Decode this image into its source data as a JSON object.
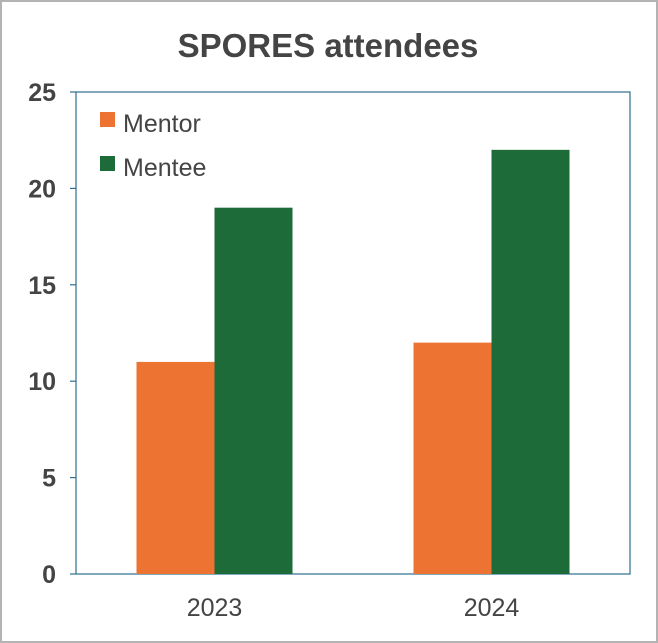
{
  "chart_data": {
    "type": "bar",
    "title": "SPORES attendees",
    "categories": [
      "2023",
      "2024"
    ],
    "series": [
      {
        "name": "Mentor",
        "color": "#ED7332",
        "values": [
          11,
          12
        ]
      },
      {
        "name": "Mentee",
        "color": "#1E6B3A",
        "values": [
          19,
          22
        ]
      }
    ],
    "ylim": [
      0,
      25
    ],
    "yticks": [
      "0",
      "5",
      "10",
      "15",
      "20",
      "25"
    ],
    "grid": false,
    "legend_position": "top-left",
    "xlabel": "",
    "ylabel": ""
  }
}
